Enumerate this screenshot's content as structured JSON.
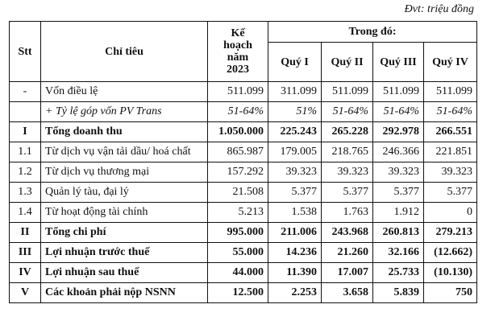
{
  "unit_note": "Đvt: triệu đồng",
  "header": {
    "stt": "Stt",
    "indicator": "Chỉ tiêu",
    "plan": [
      "Kế",
      "hoạch",
      "năm",
      "2023"
    ],
    "group": "Trong đó:",
    "quarters": [
      "Quý I",
      "Quý II",
      "Quý III",
      "Quý IV"
    ]
  },
  "rows": [
    {
      "stt": "-",
      "label": "Vốn điều lệ",
      "plan": "511.099",
      "q": [
        "311.099",
        "511.099",
        "511.099",
        "511.099"
      ],
      "style": "dot"
    },
    {
      "stt": "",
      "label": "+ Tỷ lệ góp vốn PV Trans",
      "plan": "51-64%",
      "q": [
        "51%",
        "51-64%",
        "51-64%",
        "51-64%"
      ],
      "style": "i"
    },
    {
      "stt": "I",
      "label": "Tổng doanh thu",
      "plan": "1.050.000",
      "q": [
        "225.243",
        "265.228",
        "292.978",
        "266.551"
      ],
      "style": "b"
    },
    {
      "stt": "1.1",
      "label": "Từ dịch vụ vận tải dầu/ hoá chất",
      "plan": "865.987",
      "q": [
        "179.005",
        "218.765",
        "246.366",
        "221.851"
      ],
      "style": "dot"
    },
    {
      "stt": "1.2",
      "label": "Từ dịch vụ thương mại",
      "plan": "157.292",
      "q": [
        "39.323",
        "39.323",
        "39.323",
        "39.323"
      ],
      "style": "dot"
    },
    {
      "stt": "1.3",
      "label": "Quản lý tàu, đại lý",
      "plan": "21.508",
      "q": [
        "5.377",
        "5.377",
        "5.377",
        "5.377"
      ],
      "style": "dot"
    },
    {
      "stt": "1.4",
      "label": "Từ hoạt động tài chính",
      "plan": "5.213",
      "q": [
        "1.538",
        "1.763",
        "1.912",
        "0"
      ],
      "style": ""
    },
    {
      "stt": "II",
      "label": "Tổng chi phí",
      "plan": "995.000",
      "q": [
        "211.006",
        "243.968",
        "260.813",
        "279.213"
      ],
      "style": "b"
    },
    {
      "stt": "III",
      "label": "Lợi nhuận trước thuế",
      "plan": "55.000",
      "q": [
        "14.236",
        "21.260",
        "32.166",
        "(12.662)"
      ],
      "style": "b"
    },
    {
      "stt": "IV",
      "label": "Lợi nhuận sau thuế",
      "plan": "44.000",
      "q": [
        "11.390",
        "17.007",
        "25.733",
        "(10.130)"
      ],
      "style": "b"
    },
    {
      "stt": "V",
      "label": "Các khoản phải nộp NSNN",
      "plan": "12.500",
      "q": [
        "2.253",
        "3.658",
        "5.839",
        "750"
      ],
      "style": "b"
    }
  ]
}
